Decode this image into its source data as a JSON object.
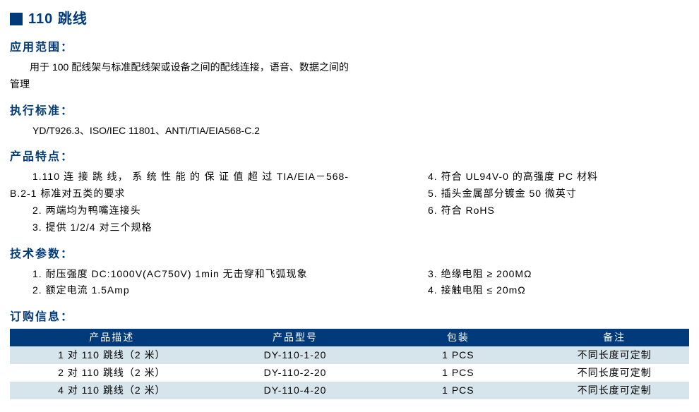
{
  "title": "110 跳线",
  "colors": {
    "heading": "#003a7a",
    "table_header_bg": "#003a7a",
    "table_row_alt_bg": "#d6e4ec",
    "table_row_bg": "#ffffff",
    "text": "#000000"
  },
  "sections": {
    "scope": {
      "heading": "应用范围：",
      "text": "用于 100 配线架与标准配线架或设备之间的配线连接，语音、数据之间的管理"
    },
    "standards": {
      "heading": "执行标准：",
      "text": "YD/T926.3、ISO/IEC 11801、ANTI/TIA/EIA568-C.2"
    },
    "features": {
      "heading": "产品特点：",
      "left": [
        "1.110 连 接 跳 线， 系 统 性 能 的 保 证 值 超 过 TIA/EIA－568-B.2-1 标准对五类的要求",
        "2. 两端均为鸭嘴连接头",
        "3. 提供 1/2/4 对三个规格"
      ],
      "right": [
        "4. 符合 UL94V-0 的高强度 PC 材料",
        "5. 插头金属部分镀金 50 微英寸",
        "6. 符合 RoHS"
      ]
    },
    "params": {
      "heading": "技术参数：",
      "left": [
        "1. 耐压强度 DC:1000V(AC750V) 1min 无击穿和飞弧现象",
        "2. 额定电流 1.5Amp"
      ],
      "right": [
        "3. 绝缘电阻 ≥ 200MΩ",
        "4. 接触电阻 ≤ 20mΩ"
      ]
    },
    "ordering": {
      "heading": "订购信息：",
      "columns": [
        "产品描述",
        "产品型号",
        "包装",
        "备注"
      ],
      "col_widths": [
        "30%",
        "24%",
        "24%",
        "22%"
      ],
      "rows": [
        [
          "1 对 110 跳线（2 米）",
          "DY-110-1-20",
          "1 PCS",
          "不同长度可定制"
        ],
        [
          "2 对 110 跳线（2 米）",
          "DY-110-2-20",
          "1 PCS",
          "不同长度可定制"
        ],
        [
          "4 对 110 跳线（2 米）",
          "DY-110-4-20",
          "1 PCS",
          "不同长度可定制"
        ]
      ]
    }
  }
}
